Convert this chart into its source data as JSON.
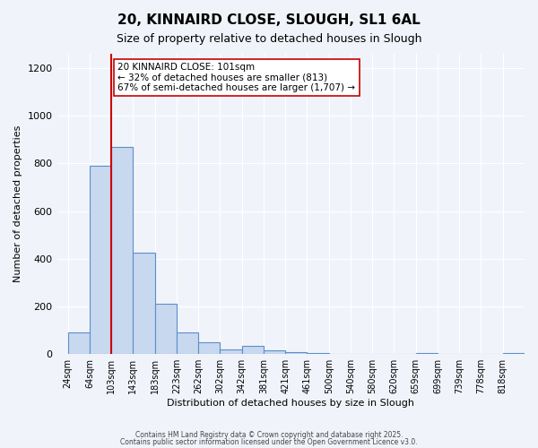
{
  "title": "20, KINNAIRD CLOSE, SLOUGH, SL1 6AL",
  "subtitle": "Size of property relative to detached houses in Slough",
  "xlabel": "Distribution of detached houses by size in Slough",
  "ylabel": "Number of detached properties",
  "bin_labels": [
    "24sqm",
    "64sqm",
    "103sqm",
    "143sqm",
    "183sqm",
    "223sqm",
    "262sqm",
    "302sqm",
    "342sqm",
    "381sqm",
    "421sqm",
    "461sqm",
    "500sqm",
    "540sqm",
    "580sqm",
    "620sqm",
    "659sqm",
    "699sqm",
    "739sqm",
    "778sqm",
    "818sqm"
  ],
  "bar_values": [
    90,
    790,
    870,
    425,
    210,
    90,
    50,
    20,
    35,
    15,
    10,
    5,
    0,
    0,
    0,
    0,
    5,
    0,
    0,
    0,
    5
  ],
  "bar_color": "#c8d8ef",
  "bar_edgecolor": "#5b8fc9",
  "bar_linewidth": 0.8,
  "vline_x_bin": 2,
  "vline_color": "#cc0000",
  "vline_linewidth": 1.5,
  "annotation_text": "20 KINNAIRD CLOSE: 101sqm\n← 32% of detached houses are smaller (813)\n67% of semi-detached houses are larger (1,707) →",
  "annotation_bbox_edgecolor": "#cc0000",
  "annotation_bbox_facecolor": "white",
  "annotation_fontsize": 7.5,
  "ylim": [
    0,
    1260
  ],
  "yticks": [
    0,
    200,
    400,
    600,
    800,
    1000,
    1200
  ],
  "bg_color": "#f0f4fa",
  "grid_color": "white",
  "footer1": "Contains HM Land Registry data © Crown copyright and database right 2025.",
  "footer2": "Contains public sector information licensed under the Open Government Licence v3.0."
}
